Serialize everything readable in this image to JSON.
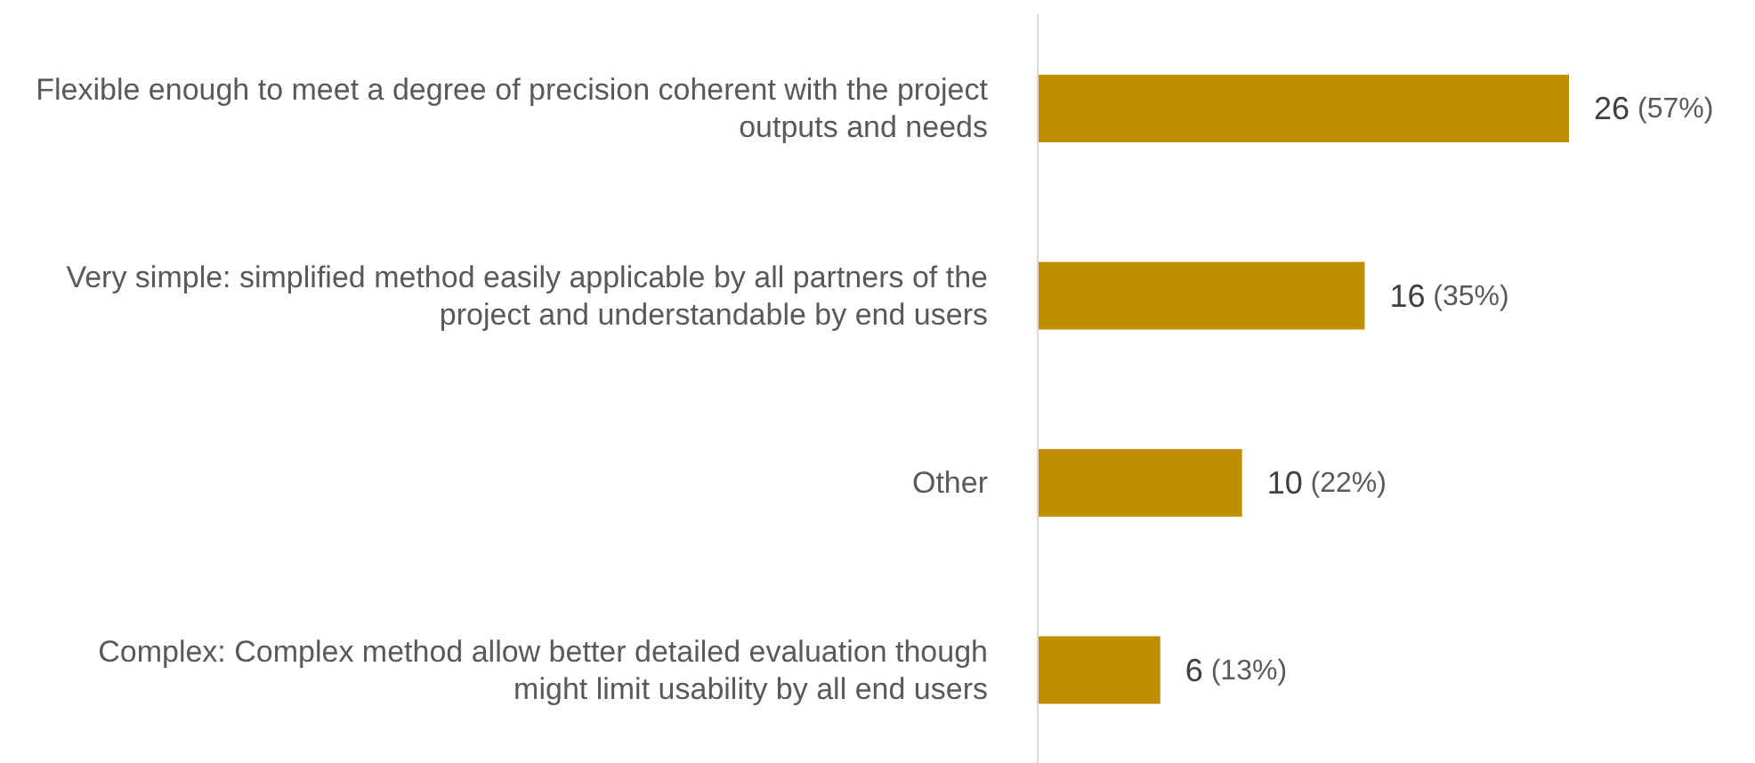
{
  "chart_data": {
    "type": "bar",
    "orientation": "horizontal",
    "categories": [
      "Flexible enough to meet a degree of precision coherent with the project outputs and needs",
      "Very simple: simplified method easily applicable by all partners of the project and understandable by end users",
      "Other",
      "Complex: Complex method allow better detailed evaluation though might limit usability by all end users"
    ],
    "values": [
      26,
      16,
      10,
      6
    ],
    "color": "#bf8f00",
    "value_labels": [
      "26 (57%)",
      "16 (35%)",
      "10 (22%)",
      "6 (13%)"
    ],
    "tick_labels": "y"
  }
}
